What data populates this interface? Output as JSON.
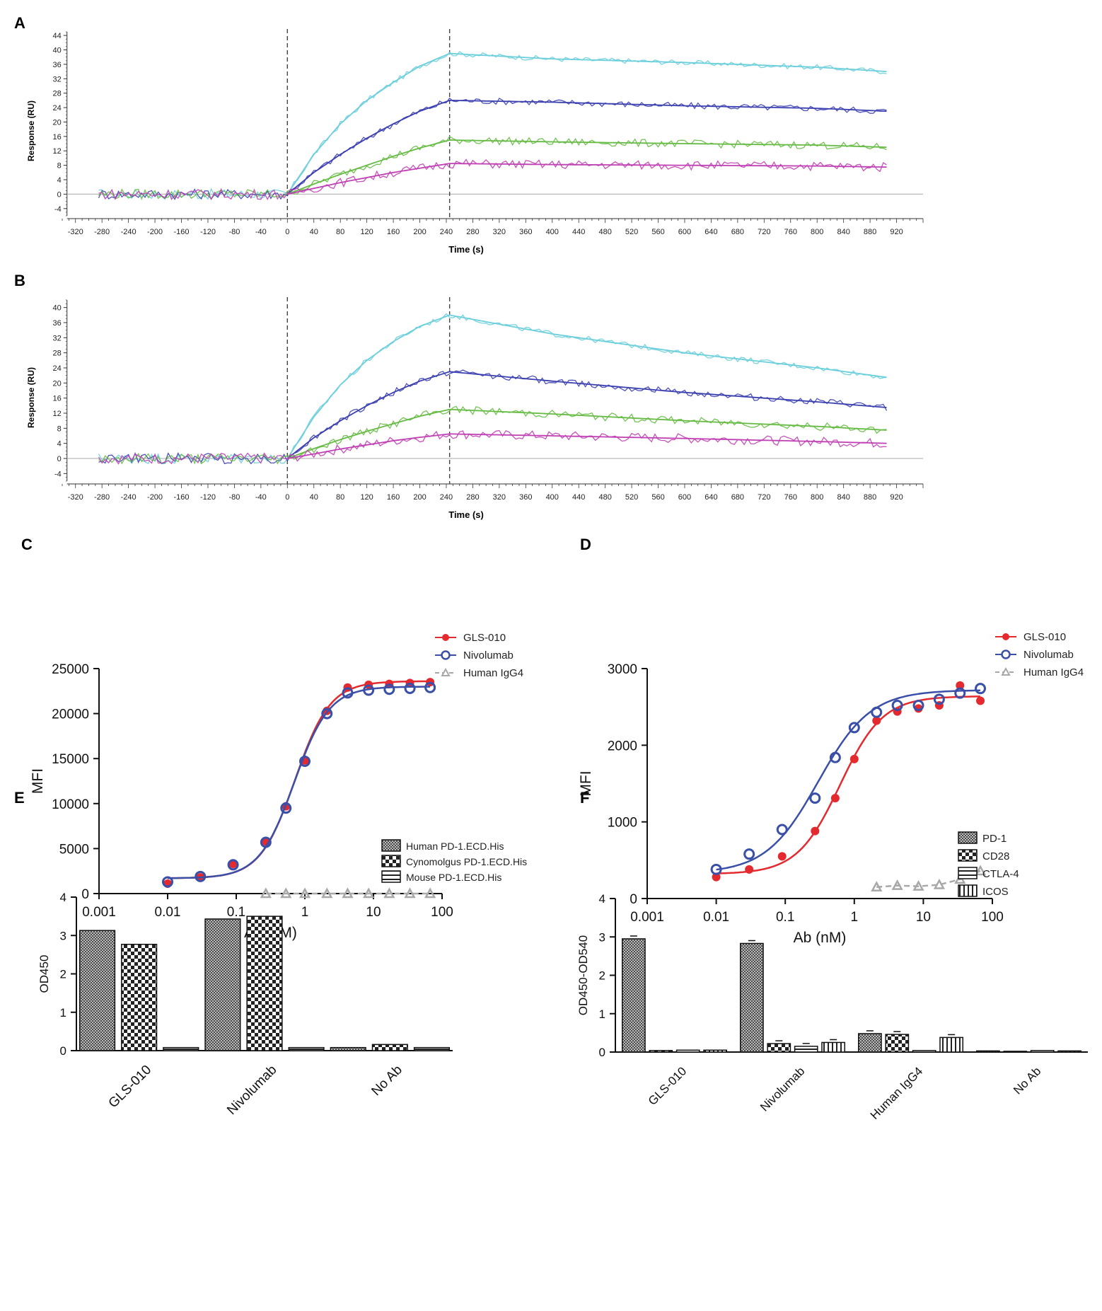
{
  "colors": {
    "cyan": "#6ccfdc",
    "blue": "#3b3fb0",
    "green": "#66bb44",
    "magenta": "#c040b4",
    "red": "#e42a2e",
    "navy": "#3a4fa8",
    "gray": "#a8a8a8",
    "axis": "#333333"
  },
  "chart_data": [
    {
      "panel": "A",
      "type": "line",
      "xlabel": "Time (s)",
      "ylabel": "Response (RU)",
      "xlim": [
        -340,
        960
      ],
      "ylim": [
        -6,
        45
      ],
      "xticks": [
        -320,
        -280,
        -240,
        -200,
        -160,
        -120,
        -80,
        -40,
        0,
        40,
        80,
        120,
        160,
        200,
        240,
        280,
        320,
        360,
        400,
        440,
        480,
        520,
        560,
        600,
        640,
        680,
        720,
        760,
        800,
        840,
        880,
        920
      ],
      "yticks": [
        -4,
        0,
        4,
        8,
        12,
        16,
        20,
        24,
        28,
        32,
        36,
        40,
        44
      ],
      "markers_x": [
        0,
        245
      ],
      "series": [
        {
          "name": "cyan",
          "color": "cyan",
          "x": [
            -285,
            0,
            245,
            905
          ],
          "y": [
            0,
            0,
            39.5,
            34
          ],
          "fit": [
            [
              0,
              0
            ],
            [
              40,
              11
            ],
            [
              80,
              19.5
            ],
            [
              120,
              26
            ],
            [
              160,
              31
            ],
            [
              200,
              35.5
            ],
            [
              245,
              39
            ],
            [
              400,
              37.5
            ],
            [
              600,
              36.5
            ],
            [
              800,
              35.2
            ],
            [
              905,
              34
            ]
          ]
        },
        {
          "name": "blue",
          "color": "blue",
          "x": [
            -285,
            0,
            245,
            905
          ],
          "y": [
            0,
            0,
            28,
            24
          ],
          "fit": [
            [
              0,
              0
            ],
            [
              40,
              6
            ],
            [
              80,
              11
            ],
            [
              120,
              15.5
            ],
            [
              160,
              19.5
            ],
            [
              200,
              23
            ],
            [
              245,
              26
            ],
            [
              400,
              25.5
            ],
            [
              600,
              24.5
            ],
            [
              800,
              23.8
            ],
            [
              905,
              23
            ]
          ]
        },
        {
          "name": "green",
          "color": "green",
          "x": [
            -285,
            0,
            245,
            905
          ],
          "y": [
            0,
            0,
            15,
            13
          ],
          "fit": [
            [
              0,
              0
            ],
            [
              40,
              2.8
            ],
            [
              80,
              5.5
            ],
            [
              120,
              8
            ],
            [
              160,
              10.5
            ],
            [
              200,
              12.8
            ],
            [
              245,
              15
            ],
            [
              400,
              14.5
            ],
            [
              600,
              14
            ],
            [
              800,
              13.6
            ],
            [
              905,
              13
            ]
          ]
        },
        {
          "name": "magenta",
          "color": "magenta",
          "x": [
            -285,
            0,
            245,
            905
          ],
          "y": [
            0,
            0,
            8.5,
            7.5
          ],
          "fit": [
            [
              0,
              0
            ],
            [
              40,
              1.6
            ],
            [
              80,
              3.2
            ],
            [
              120,
              4.6
            ],
            [
              160,
              6
            ],
            [
              200,
              7.2
            ],
            [
              245,
              8.5
            ],
            [
              400,
              8.2
            ],
            [
              600,
              8
            ],
            [
              800,
              7.8
            ],
            [
              905,
              7.5
            ]
          ]
        }
      ]
    },
    {
      "panel": "B",
      "type": "line",
      "xlabel": "Time (s)",
      "ylabel": "Response (RU)",
      "xlim": [
        -340,
        960
      ],
      "ylim": [
        -6,
        42
      ],
      "xticks": [
        -320,
        -280,
        -240,
        -200,
        -160,
        -120,
        -80,
        -40,
        0,
        40,
        80,
        120,
        160,
        200,
        240,
        280,
        320,
        360,
        400,
        440,
        480,
        520,
        560,
        600,
        640,
        680,
        720,
        760,
        800,
        840,
        880,
        920
      ],
      "yticks": [
        -4,
        0,
        4,
        8,
        12,
        16,
        20,
        24,
        28,
        32,
        36,
        40
      ],
      "markers_x": [
        0,
        245
      ],
      "series": [
        {
          "name": "cyan",
          "color": "cyan",
          "x": [
            -285,
            0,
            245,
            905
          ],
          "y": [
            1,
            0,
            38,
            20
          ],
          "fit": [
            [
              0,
              0
            ],
            [
              40,
              11
            ],
            [
              80,
              19.5
            ],
            [
              120,
              26
            ],
            [
              160,
              31
            ],
            [
              200,
              35
            ],
            [
              245,
              38
            ],
            [
              400,
              33
            ],
            [
              600,
              28
            ],
            [
              800,
              24
            ],
            [
              905,
              21.5
            ]
          ]
        },
        {
          "name": "blue",
          "color": "blue",
          "x": [
            -285,
            0,
            245,
            905
          ],
          "y": [
            0,
            0,
            24.5,
            13.5
          ],
          "fit": [
            [
              0,
              0
            ],
            [
              40,
              5.5
            ],
            [
              80,
              10
            ],
            [
              120,
              14
            ],
            [
              160,
              17.5
            ],
            [
              200,
              20.5
            ],
            [
              245,
              23
            ],
            [
              400,
              20.5
            ],
            [
              600,
              17.5
            ],
            [
              800,
              15
            ],
            [
              905,
              13.5
            ]
          ]
        },
        {
          "name": "green",
          "color": "green",
          "x": [
            -285,
            0,
            245,
            905
          ],
          "y": [
            -0.5,
            0,
            13,
            7
          ],
          "fit": [
            [
              0,
              0
            ],
            [
              40,
              2.6
            ],
            [
              80,
              5
            ],
            [
              120,
              7.2
            ],
            [
              160,
              9.2
            ],
            [
              200,
              11.2
            ],
            [
              245,
              13
            ],
            [
              400,
              11.8
            ],
            [
              600,
              10
            ],
            [
              800,
              8.5
            ],
            [
              905,
              7.5
            ]
          ]
        },
        {
          "name": "magenta",
          "color": "magenta",
          "x": [
            -285,
            0,
            245,
            905
          ],
          "y": [
            -0.5,
            0,
            7,
            4
          ],
          "fit": [
            [
              0,
              0
            ],
            [
              40,
              1.2
            ],
            [
              80,
              2.5
            ],
            [
              120,
              3.6
            ],
            [
              160,
              4.7
            ],
            [
              200,
              5.6
            ],
            [
              245,
              6.5
            ],
            [
              400,
              6
            ],
            [
              600,
              5.3
            ],
            [
              800,
              4.5
            ],
            [
              905,
              4
            ]
          ]
        }
      ]
    },
    {
      "panel": "C",
      "type": "scatter",
      "xscale": "log",
      "xlabel": "Ab (nM)",
      "ylabel": "MFI",
      "xlim": [
        0.001,
        100
      ],
      "ylim": [
        0,
        25000
      ],
      "xticks": [
        0.001,
        0.01,
        0.1,
        1,
        10,
        100
      ],
      "xtick_labels": [
        "0.001",
        "0.01",
        "0.1",
        "1",
        "10",
        "100"
      ],
      "yticks": [
        0,
        5000,
        10000,
        15000,
        20000,
        25000
      ],
      "ytick_labels": [
        "0",
        "5000",
        "10000",
        "15000",
        "20000",
        "25000"
      ],
      "series": [
        {
          "name": "GLS-010",
          "color": "red",
          "marker": "filled-circle",
          "x": [
            0.01,
            0.03,
            0.09,
            0.27,
            0.53,
            1.0,
            2.1,
            4.2,
            8.5,
            17,
            34,
            67
          ],
          "y": [
            1100,
            1800,
            3300,
            5800,
            9700,
            14800,
            20300,
            22900,
            23200,
            23300,
            23400,
            23500
          ],
          "fit": {
            "bottom": 1700,
            "top": 23600,
            "ec50": 0.72,
            "hill": 1.7
          }
        },
        {
          "name": "Nivolumab",
          "color": "navy",
          "marker": "open-circle",
          "x": [
            0.01,
            0.03,
            0.09,
            0.27,
            0.53,
            1.0,
            2.1,
            4.2,
            8.5,
            17,
            34,
            67
          ],
          "y": [
            1300,
            1900,
            3200,
            5700,
            9500,
            14700,
            20000,
            22300,
            22600,
            22700,
            22800,
            22900
          ],
          "fit": {
            "bottom": 1700,
            "top": 23000,
            "ec50": 0.7,
            "hill": 1.7
          }
        },
        {
          "name": "Human IgG4",
          "color": "gray",
          "marker": "open-triangle",
          "x": [
            0.27,
            0.53,
            1.0,
            2.1,
            4.2,
            8.5,
            17,
            34,
            67
          ],
          "y": [
            0,
            0,
            0,
            0,
            0,
            0,
            0,
            0,
            0
          ]
        }
      ]
    },
    {
      "panel": "D",
      "type": "scatter",
      "xscale": "log",
      "xlabel": "Ab (nM)",
      "ylabel": "MFI",
      "xlim": [
        0.001,
        100
      ],
      "ylim": [
        0,
        3000
      ],
      "xticks": [
        0.001,
        0.01,
        0.1,
        1,
        10,
        100
      ],
      "xtick_labels": [
        "0.001",
        "0.01",
        "0.1",
        "1",
        "10",
        "100"
      ],
      "yticks": [
        0,
        1000,
        2000,
        3000
      ],
      "ytick_labels": [
        "0",
        "1000",
        "2000",
        "3000"
      ],
      "series": [
        {
          "name": "GLS-010",
          "color": "red",
          "marker": "filled-circle",
          "x": [
            0.01,
            0.03,
            0.09,
            0.27,
            0.53,
            1.0,
            2.1,
            4.2,
            8.5,
            17,
            34,
            67
          ],
          "y": [
            280,
            380,
            550,
            880,
            1310,
            1820,
            2320,
            2440,
            2480,
            2520,
            2780,
            2580
          ],
          "fit": {
            "bottom": 320,
            "top": 2640,
            "ec50": 0.62,
            "hill": 1.4
          }
        },
        {
          "name": "Nivolumab",
          "color": "navy",
          "marker": "open-circle",
          "x": [
            0.01,
            0.03,
            0.09,
            0.27,
            0.53,
            1.0,
            2.1,
            4.2,
            8.5,
            17,
            34,
            67
          ],
          "y": [
            380,
            580,
            900,
            1310,
            1840,
            2230,
            2430,
            2520,
            2520,
            2600,
            2680,
            2740
          ],
          "fit": {
            "bottom": 330,
            "top": 2720,
            "ec50": 0.3,
            "hill": 1.15
          }
        },
        {
          "name": "Human IgG4",
          "color": "gray",
          "marker": "open-triangle",
          "x": [
            2.1,
            4.2,
            8.5,
            17,
            34,
            67
          ],
          "y": [
            150,
            170,
            160,
            180,
            250,
            360
          ]
        }
      ]
    },
    {
      "panel": "E",
      "type": "bar",
      "ylabel": "OD450",
      "ylim": [
        0,
        4
      ],
      "yticks": [
        0,
        1,
        2,
        3,
        4
      ],
      "categories": [
        "GLS-010",
        "Nivolumab",
        "No Ab"
      ],
      "series": [
        {
          "name": "Human PD-1.ECD.His",
          "pattern": "dense",
          "values": [
            3.13,
            3.43,
            0.08
          ]
        },
        {
          "name": "Cynomolgus PD-1.ECD.His",
          "pattern": "checker",
          "values": [
            2.77,
            3.5,
            0.16
          ]
        },
        {
          "name": "Mouse PD-1.ECD.His",
          "pattern": "hlines",
          "values": [
            0.08,
            0.08,
            0.08
          ]
        }
      ]
    },
    {
      "panel": "F",
      "type": "bar",
      "ylabel": "OD450-OD540",
      "ylim": [
        0,
        4
      ],
      "yticks": [
        0,
        1,
        2,
        3,
        4
      ],
      "categories": [
        "GLS-010",
        "Nivolumab",
        "Human IgG4",
        "No Ab"
      ],
      "series": [
        {
          "name": "PD-1",
          "pattern": "dense",
          "values": [
            2.95,
            2.83,
            0.48,
            0.03
          ]
        },
        {
          "name": "CD28",
          "pattern": "checker",
          "values": [
            0.04,
            0.22,
            0.46,
            0.02
          ]
        },
        {
          "name": "CTLA-4",
          "pattern": "hlines",
          "values": [
            0.05,
            0.15,
            0.04,
            0.04
          ]
        },
        {
          "name": "ICOS",
          "pattern": "vlines",
          "values": [
            0.05,
            0.25,
            0.38,
            0.03
          ]
        }
      ]
    }
  ]
}
